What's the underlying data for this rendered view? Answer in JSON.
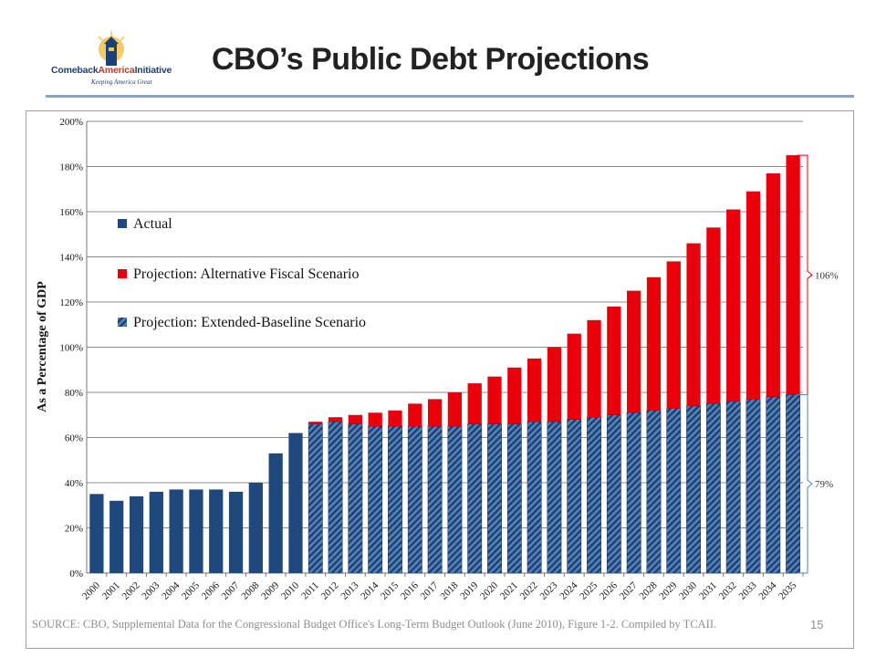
{
  "logo": {
    "word_left": "Comeback",
    "word_accent": "America",
    "word_right": "Initiative",
    "tagline": "Keeping America Great"
  },
  "title": "CBO’s Public Debt Projections",
  "source": "SOURCE: CBO, Supplemental Data for the Congressional Budget Office's Long-Term Budget Outlook (June 2010), Figure 1-2. Compiled by TCAII.",
  "page_number": "15",
  "colors": {
    "actual": "#1f497d",
    "alternative": "#e8000b",
    "baseline_fill": "#4f81bd",
    "baseline_stripe": "#1f3b66",
    "annotation": "#e8000b",
    "annotation_low": "#4f81bd"
  },
  "chart_data": {
    "type": "bar",
    "ylabel": "As a Percentage of GDP",
    "ylim": [
      0,
      200
    ],
    "y_ticks": [
      "0%",
      "20%",
      "40%",
      "60%",
      "80%",
      "100%",
      "120%",
      "140%",
      "160%",
      "180%",
      "200%"
    ],
    "grid": true,
    "legend_position": "left",
    "categories": [
      "2000",
      "2001",
      "2002",
      "2003",
      "2004",
      "2005",
      "2006",
      "2007",
      "2008",
      "2009",
      "2010",
      "2011",
      "2012",
      "2013",
      "2014",
      "2015",
      "2016",
      "2017",
      "2018",
      "2019",
      "2020",
      "2021",
      "2022",
      "2023",
      "2024",
      "2025",
      "2026",
      "2027",
      "2028",
      "2029",
      "2030",
      "2031",
      "2032",
      "2033",
      "2034",
      "2035"
    ],
    "series": [
      {
        "name": "Actual",
        "values": [
          35,
          32,
          34,
          36,
          37,
          37,
          37,
          36,
          40,
          53,
          62,
          null,
          null,
          null,
          null,
          null,
          null,
          null,
          null,
          null,
          null,
          null,
          null,
          null,
          null,
          null,
          null,
          null,
          null,
          null,
          null,
          null,
          null,
          null,
          null,
          null
        ]
      },
      {
        "name": "Projection: Alternative Fiscal Scenario",
        "values": [
          null,
          null,
          null,
          null,
          null,
          null,
          null,
          null,
          null,
          null,
          null,
          67,
          69,
          70,
          71,
          72,
          75,
          77,
          80,
          84,
          87,
          91,
          95,
          100,
          106,
          112,
          118,
          125,
          131,
          138,
          146,
          153,
          161,
          169,
          177,
          185
        ]
      },
      {
        "name": "Projection: Extended-Baseline Scenario",
        "values": [
          null,
          null,
          null,
          null,
          null,
          null,
          null,
          null,
          null,
          null,
          null,
          66,
          67,
          66,
          65,
          65,
          65,
          65,
          65,
          66,
          66,
          66,
          67,
          67,
          68,
          69,
          70,
          71,
          72,
          73,
          74,
          75,
          76,
          77,
          78,
          79
        ]
      }
    ],
    "annotations": [
      {
        "label": "106%",
        "from": 79,
        "to": 185
      },
      {
        "label": "79%",
        "from": 0,
        "to": 79
      }
    ]
  }
}
